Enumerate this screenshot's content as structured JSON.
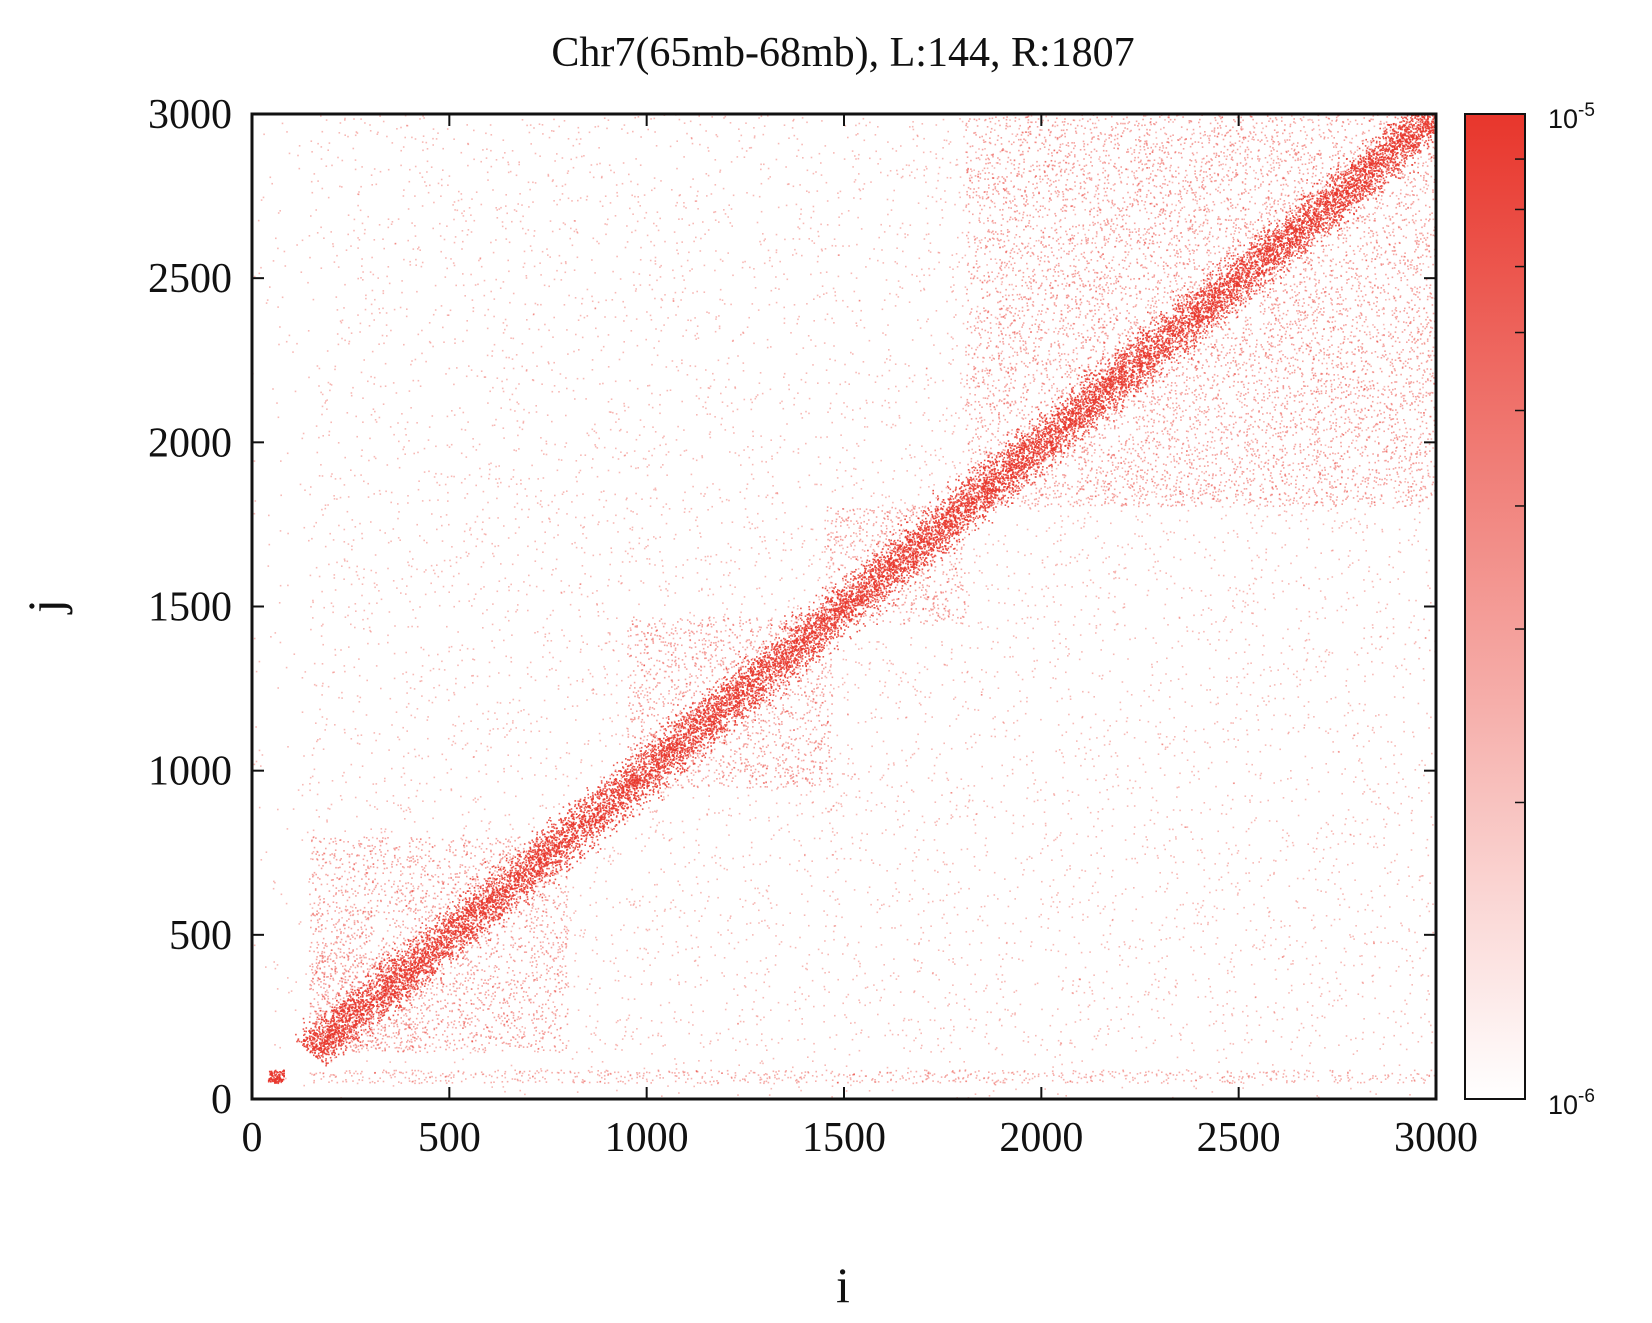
{
  "chart_data": {
    "type": "heatmap",
    "title": "Chr7(65mb-68mb), L:144, R:1807",
    "xlabel": "i",
    "ylabel": "j",
    "xlim": [
      0,
      3000
    ],
    "ylim": [
      0,
      3000
    ],
    "xticks": [
      0,
      500,
      1000,
      1500,
      2000,
      2500,
      3000
    ],
    "yticks": [
      0,
      500,
      1000,
      1500,
      2000,
      2500,
      3000
    ],
    "xtick_labels": [
      "0",
      "500",
      "1000",
      "1500",
      "2000",
      "2500",
      "3000"
    ],
    "ytick_labels": [
      "0",
      "500",
      "1000",
      "1500",
      "2000",
      "2500",
      "3000"
    ],
    "markers": {
      "L": 144,
      "R": 1807
    },
    "colorbar": {
      "scale": "log",
      "min": 1e-06,
      "max": 1e-05,
      "min_label": {
        "base": "10",
        "exp": "-6"
      },
      "max_label": {
        "base": "10",
        "exp": "-5"
      },
      "color_low": "#ffffff",
      "color_high": "#e8362c"
    },
    "domains": [
      {
        "start": 144,
        "end": 450
      },
      {
        "start": 144,
        "end": 800
      },
      {
        "start": 950,
        "end": 1470
      },
      {
        "start": 1450,
        "end": 1807
      },
      {
        "start": 1807,
        "end": 3000
      }
    ],
    "point_color": "#e8362c",
    "grid": false
  }
}
